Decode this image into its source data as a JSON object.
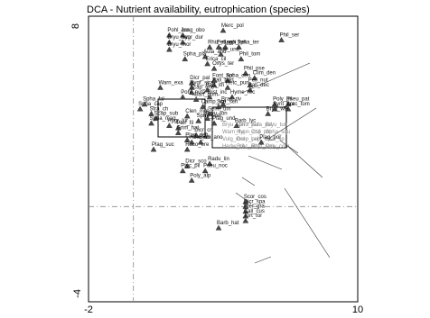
{
  "chart_data": {
    "type": "scatter",
    "title": "DCA - Nutrient availability, eutrophication (species)",
    "xlim": [
      -2,
      10
    ],
    "ylim": [
      -4,
      8
    ],
    "x_ticks": [
      "-2",
      "10"
    ],
    "y_ticks": [
      "8",
      "-4"
    ],
    "grid": false,
    "zero_lines": true,
    "marker": "triangle",
    "marker_color": "#4a4a4a",
    "points": [
      {
        "label": "Merc_pol",
        "x": 4.0,
        "y": 7.4
      },
      {
        "label": "Pohl_cru",
        "x": 1.6,
        "y": 7.2
      },
      {
        "label": "Jung_obo",
        "x": 2.2,
        "y": 7.2
      },
      {
        "label": "Phil_ser",
        "x": 6.6,
        "y": 7.0
      },
      {
        "label": "Rhiz_mag",
        "x": 3.4,
        "y": 6.7
      },
      {
        "label": "Pell_epi",
        "x": 3.8,
        "y": 6.7
      },
      {
        "label": "Loph_het",
        "x": 4.1,
        "y": 6.7
      },
      {
        "label": "Spha_ter",
        "x": 4.7,
        "y": 6.7
      },
      {
        "label": "Bryu_sau",
        "x": 1.6,
        "y": 6.9
      },
      {
        "label": "Hygr_dur",
        "x": 2.2,
        "y": 6.9
      },
      {
        "label": "Bryu_mor",
        "x": 1.6,
        "y": 6.6
      },
      {
        "label": "Aula_and",
        "x": 3.2,
        "y": 6.3
      },
      {
        "label": "Atri_und",
        "x": 3.9,
        "y": 6.4
      },
      {
        "label": "Spha_pla",
        "x": 2.3,
        "y": 6.2
      },
      {
        "label": "Erica_cil",
        "x": 3.3,
        "y": 6.0
      },
      {
        "label": "Phil_tom",
        "x": 4.8,
        "y": 6.2
      },
      {
        "label": "Oxys_ter",
        "x": 3.6,
        "y": 5.8
      },
      {
        "label": "Phil_pse",
        "x": 5.0,
        "y": 5.6
      },
      {
        "label": "Clim_den",
        "x": 5.4,
        "y": 5.4
      },
      {
        "label": "Font_ant",
        "x": 3.6,
        "y": 5.3
      },
      {
        "label": "Spha_cen",
        "x": 4.2,
        "y": 5.3
      },
      {
        "label": "Pell_nut",
        "x": 5.2,
        "y": 5.1
      },
      {
        "label": "Pall_bart",
        "x": 3.6,
        "y": 5.1
      },
      {
        "label": "Retc_pun",
        "x": 4.2,
        "y": 5.0
      },
      {
        "label": "Pall_dec",
        "x": 5.2,
        "y": 4.9
      },
      {
        "label": "Warn_exa",
        "x": 1.2,
        "y": 5.0
      },
      {
        "label": "Dicr_pal",
        "x": 2.6,
        "y": 5.2
      },
      {
        "label": "Hygr_stra",
        "x": 2.6,
        "y": 5.0
      },
      {
        "label": "Scap_unc",
        "x": 2.6,
        "y": 4.8
      },
      {
        "label": "Pohl_nuta",
        "x": 2.2,
        "y": 4.6
      },
      {
        "label": "Bart_pom",
        "x": 2.8,
        "y": 4.5
      },
      {
        "label": "Bart_ith",
        "x": 3.3,
        "y": 4.9
      },
      {
        "label": "Dist_inc",
        "x": 3.4,
        "y": 4.6
      },
      {
        "label": "Hyme_rec",
        "x": 4.4,
        "y": 4.6
      },
      {
        "label": "Brac_riv",
        "x": 4.0,
        "y": 4.3
      },
      {
        "label": "Camp_ste",
        "x": 3.1,
        "y": 4.2
      },
      {
        "label": "Sco_sch",
        "x": 3.8,
        "y": 4.2
      },
      {
        "label": "Poly_pil",
        "x": 6.3,
        "y": 4.3
      },
      {
        "label": "Pseu_pat",
        "x": 6.9,
        "y": 4.3
      },
      {
        "label": "Synt_nor",
        "x": 6.3,
        "y": 4.1
      },
      {
        "label": "Brac_tom",
        "x": 6.9,
        "y": 4.1
      },
      {
        "label": "Bryu_wei",
        "x": 6.0,
        "y": 3.9
      },
      {
        "label": "Spha_cap",
        "x": 0.3,
        "y": 4.1
      },
      {
        "label": "Spha_fal",
        "x": 0.5,
        "y": 4.3
      },
      {
        "label": "Stra_ch",
        "x": 0.8,
        "y": 3.9
      },
      {
        "label": "Scap_sub",
        "x": 1.0,
        "y": 3.7
      },
      {
        "label": "Spha_mag",
        "x": 0.8,
        "y": 3.5
      },
      {
        "label": "Clen_mol",
        "x": 2.4,
        "y": 3.8
      },
      {
        "label": "Semi_um",
        "x": 3.4,
        "y": 3.9
      },
      {
        "label": "Bryu_ton",
        "x": 3.3,
        "y": 3.7
      },
      {
        "label": "Spha_sub",
        "x": 2.9,
        "y": 3.6
      },
      {
        "label": "Hygr_lur",
        "x": 1.6,
        "y": 3.4
      },
      {
        "label": "Pter_fil",
        "x": 2.0,
        "y": 3.3
      },
      {
        "label": "Grim_hat",
        "x": 2.0,
        "y": 3.1
      },
      {
        "label": "Plag_und",
        "x": 3.6,
        "y": 3.5
      },
      {
        "label": "Barb_lyc",
        "x": 4.6,
        "y": 3.4
      },
      {
        "label": "Plag_por",
        "x": 5.7,
        "y": 2.7
      },
      {
        "label": "Dicr_cri",
        "x": 2.8,
        "y": 3.0
      },
      {
        "label": "Plag_den",
        "x": 2.4,
        "y": 2.8
      },
      {
        "label": "Abie_abi",
        "x": 2.6,
        "y": 2.7
      },
      {
        "label": "Grim_ano",
        "x": 3.0,
        "y": 2.7
      },
      {
        "label": "Raco_ere",
        "x": 2.4,
        "y": 2.4
      },
      {
        "label": "Plag_suc",
        "x": 0.9,
        "y": 2.4
      },
      {
        "label": "Radu_lin",
        "x": 3.4,
        "y": 1.8
      },
      {
        "label": "Dicr_sco",
        "x": 2.4,
        "y": 1.7
      },
      {
        "label": "Pseu_noc",
        "x": 3.2,
        "y": 1.5
      },
      {
        "label": "Ptyc_pil",
        "x": 2.2,
        "y": 1.5
      },
      {
        "label": "Poly_alp",
        "x": 2.6,
        "y": 1.1
      },
      {
        "label": "Scor_cos",
        "x": 5.0,
        "y": 0.2
      },
      {
        "label": "Dicr_spa",
        "x": 5.0,
        "y": 0.0
      },
      {
        "label": "Pter_gra",
        "x": 5.0,
        "y": -0.2
      },
      {
        "label": "Call_cus",
        "x": 5.0,
        "y": -0.4
      },
      {
        "label": "Tort_tor",
        "x": 5.0,
        "y": -0.6
      },
      {
        "label": "Barb_hat",
        "x": 3.8,
        "y": -0.9
      }
    ],
    "gray_labels": [
      "Bryu_sph",
      "Cera_pur",
      "Aula_pal",
      "Bryu_tun",
      "Warn_flu",
      "Hypn_cup",
      "Chil_pol",
      "Spha_squ",
      "Vulg_mol",
      "Drep_pol",
      "Lept_rip",
      "Fiss_sp",
      "Hedw_cil",
      "Brac_alb",
      "Rhyt_squ",
      "Poly_com"
    ]
  }
}
